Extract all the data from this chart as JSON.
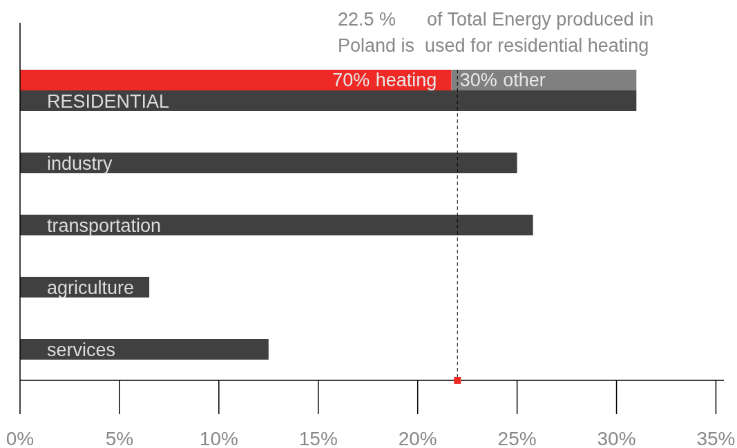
{
  "chart_data": [
    {
      "type": "bar",
      "orientation": "horizontal",
      "stacked": true,
      "categories": [
        null
      ],
      "series": [
        {
          "name": "heating",
          "color": "#ee2a27",
          "values": [
            70
          ],
          "value_labels": [
            "70%"
          ]
        },
        {
          "name": "other",
          "color": "#808080",
          "values": [
            30
          ],
          "value_labels": [
            "30%"
          ]
        }
      ]
    },
    {
      "type": "bar",
      "orientation": "horizontal",
      "categories": [
        "RESIDENTIAL",
        "industry",
        "transportation",
        "agriculture",
        "services"
      ],
      "series": [
        {
          "color": "#404040",
          "values": [
            31,
            25,
            25.8,
            6.5,
            12.5
          ]
        }
      ],
      "xlim": [
        0,
        35.4
      ],
      "xticks": [
        {
          "value": 0,
          "label": "0%"
        },
        {
          "value": 5,
          "label": "5%"
        },
        {
          "value": 10,
          "label": "10%"
        },
        {
          "value": 15,
          "label": "15%"
        },
        {
          "value": 20,
          "label": "20%"
        },
        {
          "value": 25,
          "label": "25%"
        },
        {
          "value": 30,
          "label": "30%"
        },
        {
          "value": 35,
          "label": "35%"
        }
      ],
      "ref_lines": [
        {
          "axis": "x",
          "value": 22,
          "color": "#000000",
          "line_style": "dashed"
        }
      ],
      "annotations": [
        "22.5 %      of Total Energy produced in Poland is  used for residential heating"
      ]
    }
  ]
}
